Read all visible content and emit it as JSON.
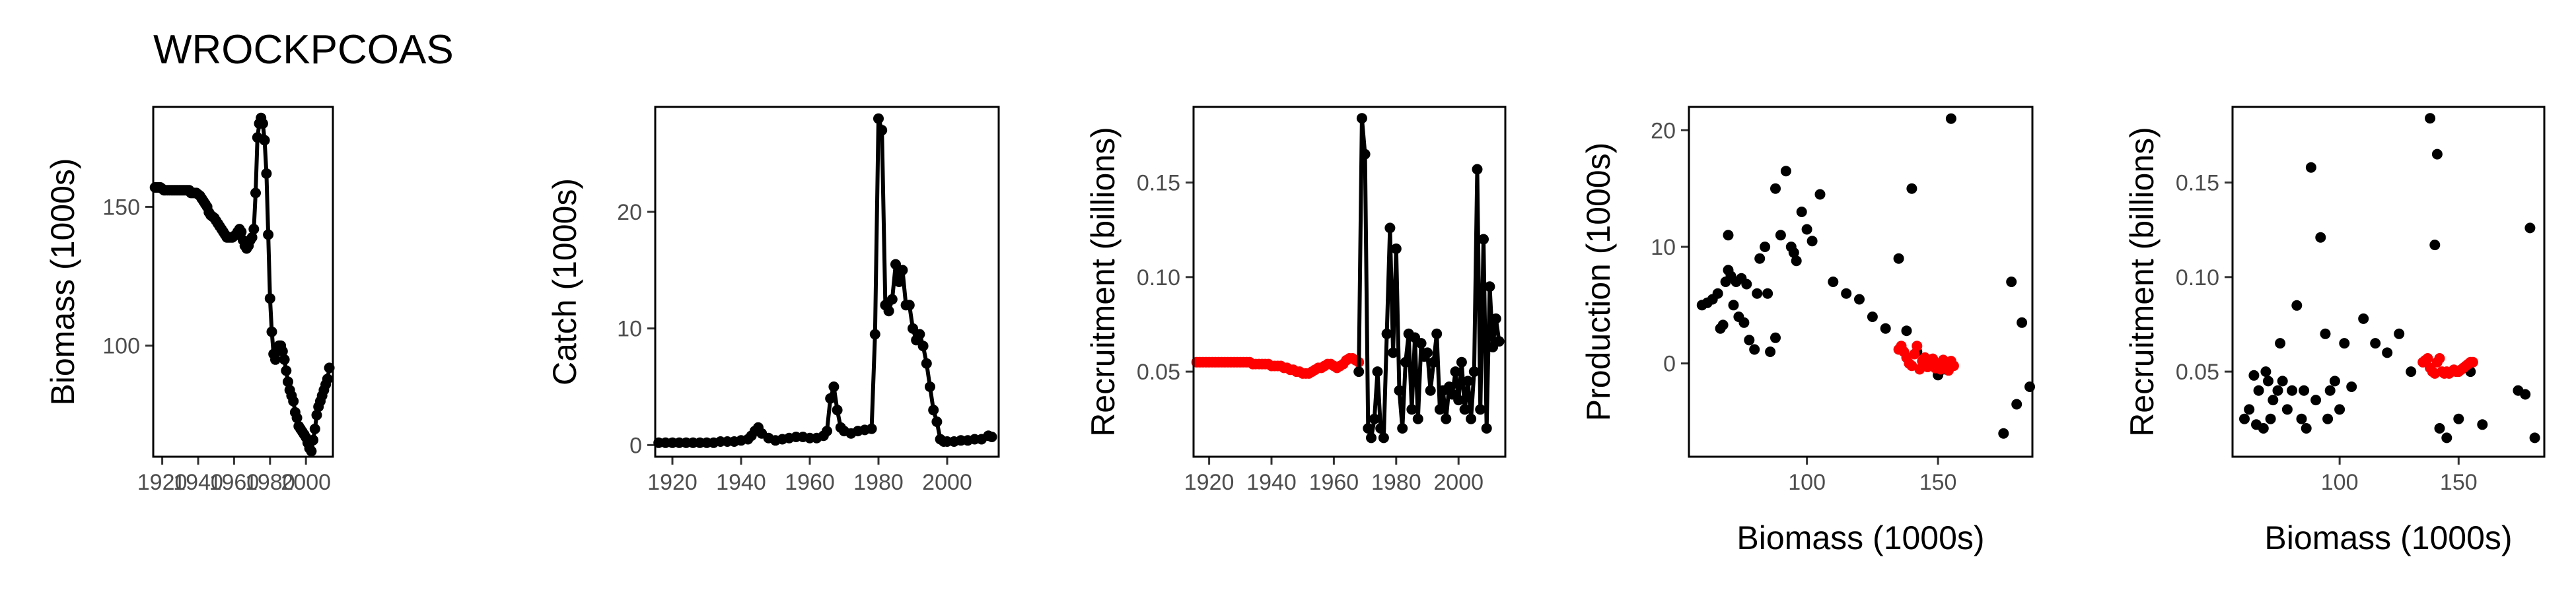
{
  "title": "WROCKPCOAS",
  "colors": {
    "black": "#000000",
    "red": "#ff0000"
  },
  "chart_data": [
    {
      "type": "line",
      "xlabel": "",
      "ylabel": "Biomass (1000s)",
      "xlim": [
        1915,
        2015
      ],
      "ylim": [
        60,
        186
      ],
      "xticks": [
        1920,
        1940,
        1960,
        1980,
        2000
      ],
      "yticks": [
        100,
        150
      ],
      "series": [
        {
          "color": "#000000",
          "marker": "point",
          "line": true,
          "x": [
            1916,
            1917,
            1918,
            1919,
            1920,
            1921,
            1922,
            1923,
            1924,
            1925,
            1926,
            1927,
            1928,
            1929,
            1930,
            1931,
            1932,
            1933,
            1934,
            1935,
            1936,
            1937,
            1938,
            1939,
            1940,
            1941,
            1942,
            1943,
            1944,
            1945,
            1946,
            1947,
            1948,
            1949,
            1950,
            1951,
            1952,
            1953,
            1954,
            1955,
            1956,
            1957,
            1958,
            1959,
            1960,
            1961,
            1962,
            1963,
            1964,
            1965,
            1966,
            1967,
            1968,
            1969,
            1970,
            1971,
            1972,
            1973,
            1974,
            1975,
            1976,
            1977,
            1978,
            1979,
            1980,
            1981,
            1982,
            1983,
            1984,
            1985,
            1986,
            1987,
            1988,
            1989,
            1990,
            1991,
            1992,
            1993,
            1994,
            1995,
            1996,
            1997,
            1998,
            1999,
            2000,
            2001,
            2002,
            2003,
            2004,
            2005,
            2006,
            2007,
            2008,
            2009,
            2010,
            2011,
            2012,
            2013
          ],
          "y": [
            157,
            157,
            157,
            157,
            156.5,
            156,
            156,
            156,
            156,
            156,
            156,
            156,
            156,
            156,
            156,
            156,
            156,
            156,
            156,
            156,
            155,
            155,
            155,
            155,
            154.5,
            154,
            153,
            152,
            151,
            150,
            148,
            147,
            146.5,
            146,
            145,
            144,
            143,
            142,
            141,
            140,
            139,
            139,
            139,
            139,
            139.5,
            140,
            141,
            142,
            141,
            138,
            136,
            135,
            136,
            138,
            139,
            142,
            155,
            175,
            180,
            182,
            180,
            174,
            162,
            140,
            117,
            105,
            97,
            95,
            98,
            100,
            100,
            98,
            95,
            91,
            87,
            84,
            82,
            80,
            76,
            74,
            71,
            70,
            69,
            68,
            67,
            65,
            63,
            62,
            66,
            70,
            75,
            78,
            80,
            82,
            84,
            86,
            88,
            92
          ],
          "note": "approximate, read from plot"
        }
      ]
    },
    {
      "type": "line",
      "xlabel": "",
      "ylabel": "Catch (1000s)",
      "xlim": [
        1915,
        2015
      ],
      "ylim": [
        -1,
        29
      ],
      "xticks": [
        1920,
        1940,
        1960,
        1980,
        2000
      ],
      "yticks": [
        0,
        10,
        20
      ],
      "series": [
        {
          "color": "#000000",
          "marker": "point",
          "line": true,
          "x": [
            1916,
            1918,
            1920,
            1922,
            1924,
            1926,
            1928,
            1930,
            1932,
            1934,
            1936,
            1938,
            1940,
            1942,
            1943,
            1944,
            1945,
            1946,
            1948,
            1950,
            1952,
            1954,
            1956,
            1958,
            1960,
            1962,
            1964,
            1965,
            1966,
            1967,
            1968,
            1969,
            1970,
            1972,
            1974,
            1976,
            1978,
            1979,
            1980,
            1981,
            1982,
            1983,
            1984,
            1985,
            1986,
            1987,
            1988,
            1989,
            1990,
            1991,
            1992,
            1993,
            1994,
            1995,
            1996,
            1997,
            1998,
            1999,
            2000,
            2002,
            2004,
            2006,
            2008,
            2010,
            2012,
            2013
          ],
          "y": [
            0.2,
            0.2,
            0.2,
            0.2,
            0.2,
            0.2,
            0.2,
            0.2,
            0.2,
            0.3,
            0.3,
            0.3,
            0.4,
            0.5,
            0.8,
            1.2,
            1.5,
            1,
            0.6,
            0.4,
            0.5,
            0.6,
            0.7,
            0.7,
            0.6,
            0.6,
            0.8,
            1.2,
            4,
            5,
            3,
            1.5,
            1.2,
            1.0,
            1.2,
            1.3,
            1.4,
            9.5,
            28,
            27,
            12,
            11.5,
            12.5,
            15.5,
            14,
            15,
            12,
            12,
            10,
            9,
            9.5,
            8.5,
            7,
            5,
            3,
            2,
            0.5,
            0.3,
            0.3,
            0.3,
            0.4,
            0.4,
            0.5,
            0.5,
            0.8,
            0.7
          ],
          "note": "approximate, read from plot"
        }
      ]
    },
    {
      "type": "line",
      "xlabel": "",
      "ylabel": "Recruitment (billions)",
      "xlim": [
        1915,
        2015
      ],
      "ylim": [
        0.005,
        0.19
      ],
      "xticks": [
        1920,
        1940,
        1960,
        1980,
        2000
      ],
      "yticks": [
        0.05,
        0.1,
        0.15
      ],
      "series": [
        {
          "color": "#ff0000",
          "marker": "point",
          "line": false,
          "x": [
            1916,
            1917,
            1918,
            1919,
            1920,
            1921,
            1922,
            1923,
            1924,
            1925,
            1926,
            1927,
            1928,
            1929,
            1930,
            1931,
            1932,
            1933,
            1934,
            1935,
            1936,
            1937,
            1938,
            1939,
            1940,
            1941,
            1942,
            1943,
            1944,
            1945,
            1946,
            1947,
            1948,
            1949,
            1950,
            1951,
            1952,
            1953,
            1954,
            1955,
            1956,
            1957,
            1958,
            1959,
            1960,
            1961,
            1962,
            1963,
            1964,
            1965,
            1966,
            1967,
            1968
          ],
          "y": [
            0.055,
            0.055,
            0.055,
            0.055,
            0.055,
            0.055,
            0.055,
            0.055,
            0.055,
            0.055,
            0.055,
            0.055,
            0.055,
            0.055,
            0.055,
            0.055,
            0.055,
            0.055,
            0.054,
            0.054,
            0.054,
            0.054,
            0.054,
            0.054,
            0.053,
            0.053,
            0.053,
            0.053,
            0.052,
            0.052,
            0.051,
            0.051,
            0.05,
            0.05,
            0.049,
            0.049,
            0.049,
            0.05,
            0.051,
            0.052,
            0.052,
            0.053,
            0.054,
            0.054,
            0.053,
            0.052,
            0.053,
            0.054,
            0.056,
            0.057,
            0.057,
            0.056,
            0.055
          ]
        },
        {
          "color": "#000000",
          "marker": "point",
          "line": true,
          "x": [
            1968,
            1969,
            1970,
            1971,
            1972,
            1973,
            1974,
            1975,
            1976,
            1977,
            1978,
            1979,
            1980,
            1981,
            1982,
            1983,
            1984,
            1985,
            1986,
            1987,
            1988,
            1989,
            1990,
            1991,
            1992,
            1993,
            1994,
            1995,
            1996,
            1997,
            1998,
            1999,
            2000,
            2001,
            2002,
            2003,
            2004,
            2005,
            2006,
            2007,
            2008,
            2009,
            2010,
            2011,
            2012,
            2013
          ],
          "y": [
            0.05,
            0.184,
            0.165,
            0.02,
            0.015,
            0.025,
            0.05,
            0.02,
            0.015,
            0.07,
            0.126,
            0.06,
            0.115,
            0.04,
            0.02,
            0.055,
            0.07,
            0.03,
            0.068,
            0.025,
            0.065,
            0.058,
            0.06,
            0.04,
            0.055,
            0.07,
            0.03,
            0.04,
            0.025,
            0.042,
            0.038,
            0.05,
            0.035,
            0.055,
            0.03,
            0.045,
            0.025,
            0.05,
            0.157,
            0.03,
            0.12,
            0.02,
            0.095,
            0.063,
            0.078,
            0.066
          ],
          "note": "approximate, read from plot"
        }
      ]
    },
    {
      "type": "scatter",
      "xlabel": "Biomass (1000s)",
      "ylabel": "Production (1000s)",
      "xlim": [
        55,
        186
      ],
      "ylim": [
        -8,
        22
      ],
      "xticks": [
        100,
        150
      ],
      "yticks": [
        0,
        10,
        20
      ],
      "series": [
        {
          "color": "#000000",
          "x": [
            60,
            62,
            64,
            66,
            67,
            68,
            69,
            70,
            70,
            71,
            72,
            73,
            74,
            75,
            76,
            77,
            78,
            80,
            81,
            82,
            84,
            85,
            86,
            88,
            88,
            90,
            92,
            94,
            95,
            96,
            98,
            100,
            102,
            105,
            110,
            115,
            120,
            125,
            130,
            135,
            138,
            140,
            142,
            145,
            150,
            152,
            155,
            175,
            178,
            180,
            182,
            185
          ],
          "y": [
            5,
            5.2,
            5.5,
            6,
            3,
            3.3,
            7,
            11,
            8,
            7.5,
            5,
            7,
            4,
            7.3,
            3.5,
            6.8,
            2,
            1.2,
            6,
            9,
            10,
            6,
            1,
            15,
            2.2,
            11,
            16.5,
            10,
            9.5,
            8.8,
            13,
            11.5,
            10.5,
            14.5,
            7,
            6,
            5.5,
            4,
            3,
            9,
            2.8,
            15,
            1,
            0,
            -1,
            -0.5,
            21,
            -6,
            7,
            -3.5,
            3.5,
            -2
          ],
          "note": "approximate, read from plot"
        },
        {
          "color": "#ff0000",
          "x": [
            135,
            136,
            137,
            138,
            139,
            140,
            141,
            142,
            143,
            144,
            145,
            146,
            147,
            148,
            149,
            150,
            151,
            152,
            153,
            154,
            155,
            156
          ],
          "y": [
            1.2,
            1.5,
            1.0,
            0.5,
            0,
            -0.2,
            0.8,
            1.5,
            -0.5,
            0.2,
            0.5,
            -0.3,
            0,
            0.4,
            -0.4,
            0,
            -0.5,
            0.3,
            0,
            -0.6,
            0.2,
            -0.2
          ]
        }
      ]
    },
    {
      "type": "scatter",
      "xlabel": "Biomass (1000s)",
      "ylabel": "Recruitment (billions)",
      "xlim": [
        55,
        186
      ],
      "ylim": [
        0.005,
        0.19
      ],
      "xticks": [
        100,
        150
      ],
      "yticks": [
        0.05,
        0.1,
        0.15
      ],
      "series": [
        {
          "color": "#000000",
          "x": [
            60,
            62,
            64,
            65,
            66,
            68,
            69,
            70,
            71,
            72,
            74,
            75,
            76,
            78,
            80,
            82,
            84,
            85,
            86,
            88,
            90,
            92,
            94,
            95,
            96,
            98,
            100,
            102,
            105,
            110,
            115,
            120,
            125,
            130,
            138,
            140,
            141,
            142,
            145,
            150,
            155,
            160,
            175,
            178,
            180,
            182
          ],
          "y": [
            0.025,
            0.03,
            0.048,
            0.022,
            0.04,
            0.02,
            0.05,
            0.045,
            0.025,
            0.035,
            0.04,
            0.065,
            0.045,
            0.03,
            0.04,
            0.085,
            0.025,
            0.04,
            0.02,
            0.158,
            0.035,
            0.121,
            0.07,
            0.025,
            0.04,
            0.045,
            0.03,
            0.065,
            0.042,
            0.078,
            0.065,
            0.06,
            0.07,
            0.05,
            0.184,
            0.117,
            0.165,
            0.02,
            0.015,
            0.025,
            0.05,
            0.022,
            0.04,
            0.038,
            0.126,
            0.015
          ],
          "note": "approximate, read from plot"
        },
        {
          "color": "#ff0000",
          "x": [
            135,
            136,
            137,
            138,
            139,
            140,
            141,
            142,
            143,
            144,
            145,
            146,
            147,
            148,
            149,
            150,
            151,
            152,
            153,
            154,
            155,
            156
          ],
          "y": [
            0.055,
            0.056,
            0.057,
            0.052,
            0.05,
            0.049,
            0.055,
            0.057,
            0.05,
            0.049,
            0.05,
            0.049,
            0.05,
            0.051,
            0.05,
            0.05,
            0.051,
            0.052,
            0.053,
            0.054,
            0.055,
            0.055
          ]
        }
      ]
    }
  ]
}
